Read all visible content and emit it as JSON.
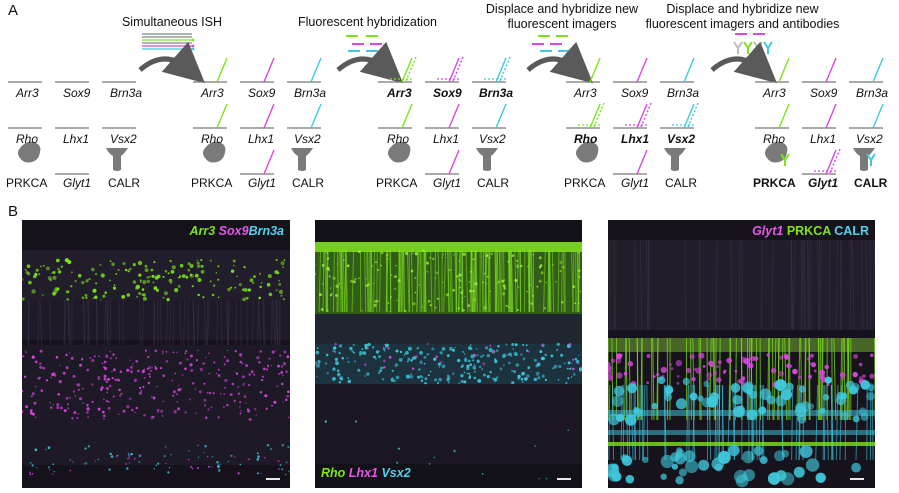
{
  "panel_labels": {
    "a": "A",
    "b": "B"
  },
  "steps": [
    "Simultaneous ISH",
    "Fluorescent hybridization",
    "Displace and hybridize new fluorescent imagers",
    "Displace and hybridize new fluorescent imagers and antibodies"
  ],
  "genes": {
    "arr3": "Arr3",
    "sox9": "Sox9",
    "brn3a": "Brn3a",
    "rho": "Rho",
    "lhx1": "Lhx1",
    "vsx2": "Vsx2",
    "glyt1": "Glyt1"
  },
  "proteins": {
    "prkca": "PRKCA",
    "calr": "CALR"
  },
  "colors": {
    "green": "#7ee31c",
    "magenta": "#d946e0",
    "cyan": "#3fc9dd",
    "gray": "#7a7a7a",
    "arrow": "#5a5a5a"
  },
  "image_captions": {
    "img1": {
      "arr3": "Arr3",
      "sox9": "Sox9",
      "brn3a": "Brn3a"
    },
    "img2": {
      "rho": "Rho",
      "lhx1": "Lhx1",
      "vsx2": "Vsx2"
    },
    "img3": {
      "glyt1": "Glyt1",
      "prkca": "PRKCA",
      "calr": "CALR"
    }
  }
}
